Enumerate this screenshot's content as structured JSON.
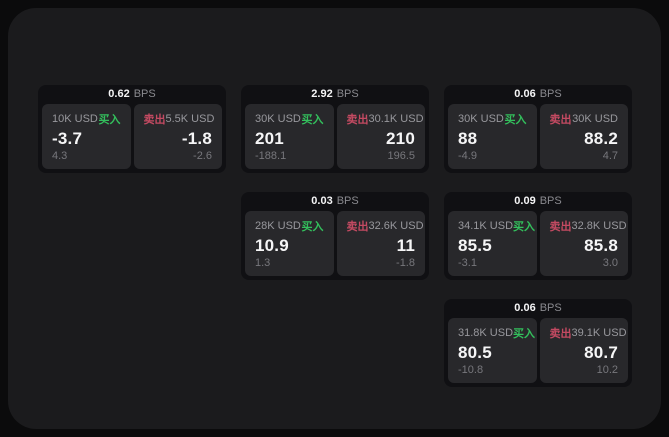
{
  "labels": {
    "buy": "买入",
    "sell": "卖出",
    "bps_unit": "BPS"
  },
  "colors": {
    "buy_green": "#33bf5c",
    "sell_red": "#c44a62",
    "panel_bg": "#1b1b1d",
    "card_bg": "#101013",
    "pane_bg": "#28282b"
  },
  "cards": [
    {
      "bps": "0.62",
      "buy": {
        "amount": "10K USD",
        "price": "-3.7",
        "delta": "4.3"
      },
      "sell": {
        "amount": "5.5K USD",
        "price": "-1.8",
        "delta": "-2.6"
      }
    },
    {
      "bps": "2.92",
      "buy": {
        "amount": "30K USD",
        "price": "201",
        "delta": "-188.1"
      },
      "sell": {
        "amount": "30.1K USD",
        "price": "210",
        "delta": "196.5"
      }
    },
    {
      "bps": "0.06",
      "buy": {
        "amount": "30K USD",
        "price": "88",
        "delta": "-4.9"
      },
      "sell": {
        "amount": "30K USD",
        "price": "88.2",
        "delta": "4.7"
      }
    },
    {
      "bps": "0.03",
      "buy": {
        "amount": "28K USD",
        "price": "10.9",
        "delta": "1.3"
      },
      "sell": {
        "amount": "32.6K USD",
        "price": "11",
        "delta": "-1.8"
      }
    },
    {
      "bps": "0.09",
      "buy": {
        "amount": "34.1K USD",
        "price": "85.5",
        "delta": "-3.1"
      },
      "sell": {
        "amount": "32.8K USD",
        "price": "85.8",
        "delta": "3.0"
      }
    },
    {
      "bps": "0.06",
      "buy": {
        "amount": "31.8K USD",
        "price": "80.5",
        "delta": "-10.8"
      },
      "sell": {
        "amount": "39.1K USD",
        "price": "80.7",
        "delta": "10.2"
      }
    }
  ]
}
